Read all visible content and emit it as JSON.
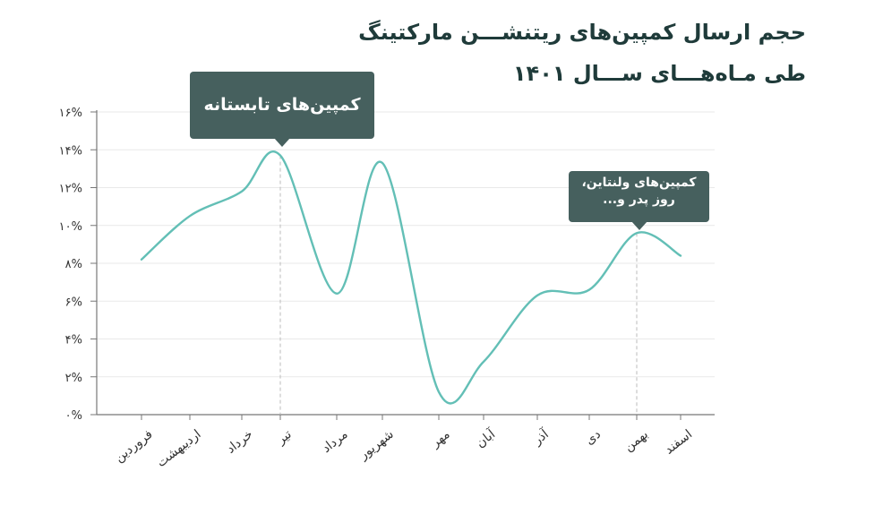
{
  "title": {
    "line1": "حجم ارسال کمپین‌های ریتنشـــن مارکتینگ",
    "line2": "طی مـاه‌هـــای ســـال ۱۴۰۱"
  },
  "callouts": {
    "summer": "کمپین‌های تابستانه",
    "valentine_line1": "کمپین‌های ولنتاین،",
    "valentine_line2": "روز پدر و..."
  },
  "colors": {
    "line": "#63bfb6",
    "axis": "#777777",
    "callout_bg": "#46605e",
    "title": "#1f3b3a"
  },
  "chart_data": {
    "type": "line",
    "categories": [
      "فروردین",
      "اردیبهشت",
      "خرداد",
      "تیر",
      "مرداد",
      "شهریور",
      "مهر",
      "آبان",
      "آذر",
      "دی",
      "بهمن",
      "اسفند"
    ],
    "y_tick_labels": [
      "۰%",
      "۲%",
      "۴%",
      "۶%",
      "۸%",
      "۱۰%",
      "۱۲%",
      "۱۴%",
      "۱۶%"
    ],
    "series": [
      {
        "values": [
          8.2,
          10.5,
          11.8,
          13.7,
          6.4,
          13.3,
          1.2,
          2.8,
          6.3,
          6.6,
          9.6,
          8.4
        ]
      }
    ],
    "ylim": [
      0,
      16
    ],
    "grid": true,
    "highlight_points": [
      "تیر",
      "بهمن"
    ]
  }
}
